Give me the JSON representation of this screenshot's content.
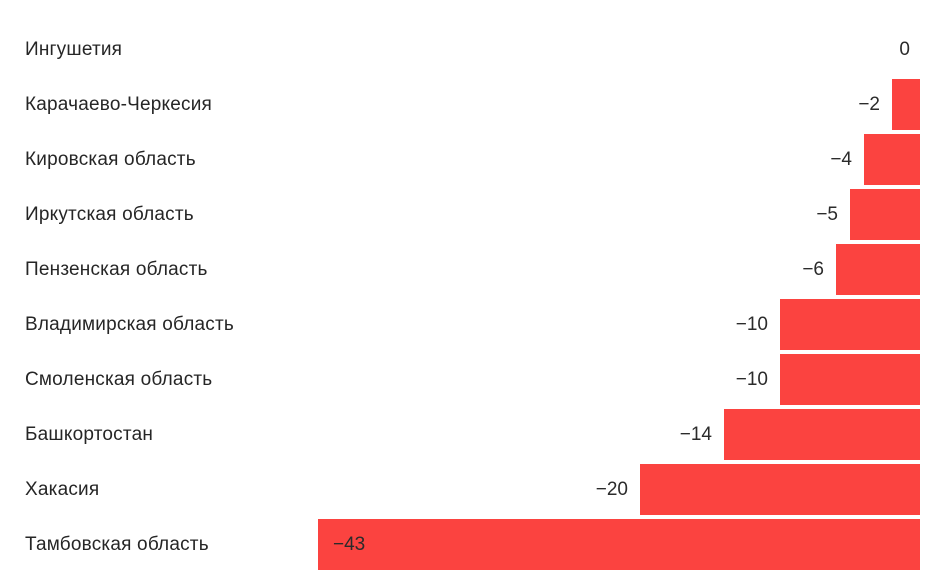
{
  "chart_data": {
    "type": "bar",
    "orientation": "horizontal",
    "title": "",
    "xlabel": "",
    "ylabel": "",
    "grid": false,
    "legend": "none",
    "xlim": [
      -43,
      0
    ],
    "categories": [
      "Ингушетия",
      "Карачаево-Черкесия",
      "Кировская область",
      "Иркутская область",
      "Пензенская область",
      "Владимирская область",
      "Смоленская область",
      "Башкортостан",
      "Хакасия",
      "Тамбовская область"
    ],
    "values": [
      0,
      -2,
      -4,
      -5,
      -6,
      -10,
      -10,
      -14,
      -20,
      -43
    ],
    "value_labels": [
      "0",
      "−2",
      "−4",
      "−5",
      "−6",
      "−10",
      "−10",
      "−14",
      "−20",
      "−43"
    ],
    "value_label_inside": [
      false,
      false,
      false,
      false,
      false,
      false,
      false,
      false,
      false,
      true
    ],
    "bar_color": "#FB4340",
    "text_color": "#262626",
    "background": "#FFFFFF"
  }
}
